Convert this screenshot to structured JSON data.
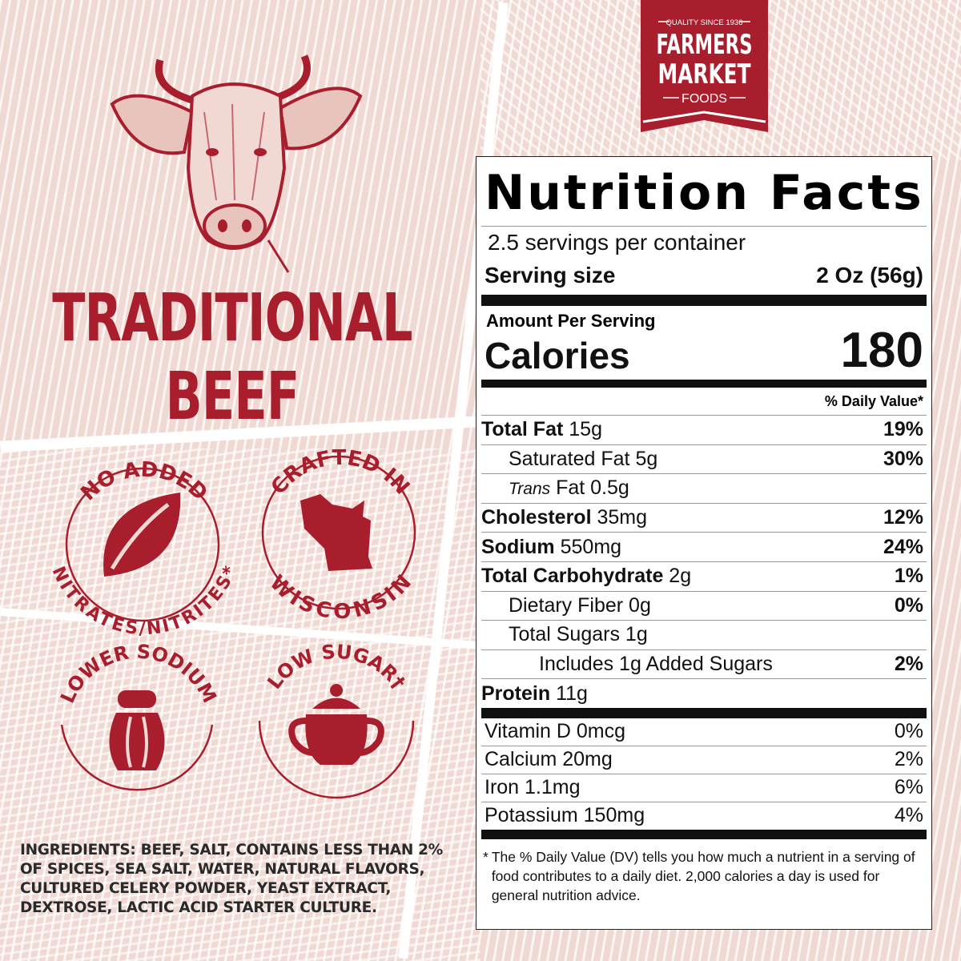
{
  "brand": {
    "tagline": "QUALITY SINCE 1936",
    "name_line1": "FARMERS",
    "name_line2": "MARKET",
    "name_line3": "FOODS",
    "color": "#a81e2d"
  },
  "product": {
    "title_line1": "TRADITIONAL",
    "title_line2": "BEEF"
  },
  "badges": [
    {
      "top": "NO ADDED",
      "bottom": "NITRATES/NITRITES*",
      "icon": "leaf-icon"
    },
    {
      "top": "CRAFTED IN",
      "bottom": "WISCONSIN",
      "icon": "wisconsin-map-icon"
    },
    {
      "top": "LOWER SODIUM",
      "bottom": "",
      "icon": "salt-shaker-icon"
    },
    {
      "top": "LOW SUGAR†",
      "bottom": "",
      "icon": "sugar-bowl-icon"
    }
  ],
  "ingredients": "INGREDIENTS: BEEF, SALT, CONTAINS LESS THAN 2% OF SPICES, SEA SALT, WATER, NATURAL FLAVORS, CULTURED CELERY POWDER, YEAST EXTRACT, DEXTROSE, LACTIC ACID STARTER CULTURE.",
  "nutrition": {
    "title": "Nutrition Facts",
    "servings": "2.5 servings per container",
    "serving_size_label": "Serving size",
    "serving_size_value": "2 Oz (56g)",
    "amount_per_serving": "Amount Per Serving",
    "calories_label": "Calories",
    "calories_value": "180",
    "dv_header": "% Daily Value*",
    "nutrients": [
      {
        "name": "Total Fat",
        "amount": "15g",
        "dv": "19%",
        "bold": true,
        "indent": 0
      },
      {
        "name": "Saturated Fat",
        "amount": "5g",
        "dv": "30%",
        "bold": false,
        "indent": 1
      },
      {
        "name_italic": "Trans",
        "name": "Fat",
        "amount": "0.5g",
        "dv": "",
        "bold": false,
        "indent": 1
      },
      {
        "name": "Cholesterol",
        "amount": "35mg",
        "dv": "12%",
        "bold": true,
        "indent": 0
      },
      {
        "name": "Sodium",
        "amount": "550mg",
        "dv": "24%",
        "bold": true,
        "indent": 0
      },
      {
        "name": "Total Carbohydrate",
        "amount": "2g",
        "dv": "1%",
        "bold": true,
        "indent": 0
      },
      {
        "name": "Dietary Fiber",
        "amount": "0g",
        "dv": "0%",
        "bold": false,
        "indent": 1
      },
      {
        "name": "Total Sugars",
        "amount": "1g",
        "dv": "",
        "bold": false,
        "indent": 1
      },
      {
        "name": "Includes 1g Added Sugars",
        "amount": "",
        "dv": "2%",
        "bold": false,
        "indent": 2
      },
      {
        "name": "Protein",
        "amount": "11g",
        "dv": "",
        "bold": true,
        "indent": 0
      }
    ],
    "vitamins": [
      {
        "name": "Vitamin D 0mcg",
        "dv": "0%"
      },
      {
        "name": "Calcium 20mg",
        "dv": "2%"
      },
      {
        "name": "Iron 1.1mg",
        "dv": "6%"
      },
      {
        "name": "Potassium 150mg",
        "dv": "4%"
      }
    ],
    "footnote": "The % Daily Value (DV) tells you how much a nutrient in a serving of food contributes to a daily diet. 2,000 calories a day is used for general nutrition advice.",
    "footnote_mark": "*"
  }
}
